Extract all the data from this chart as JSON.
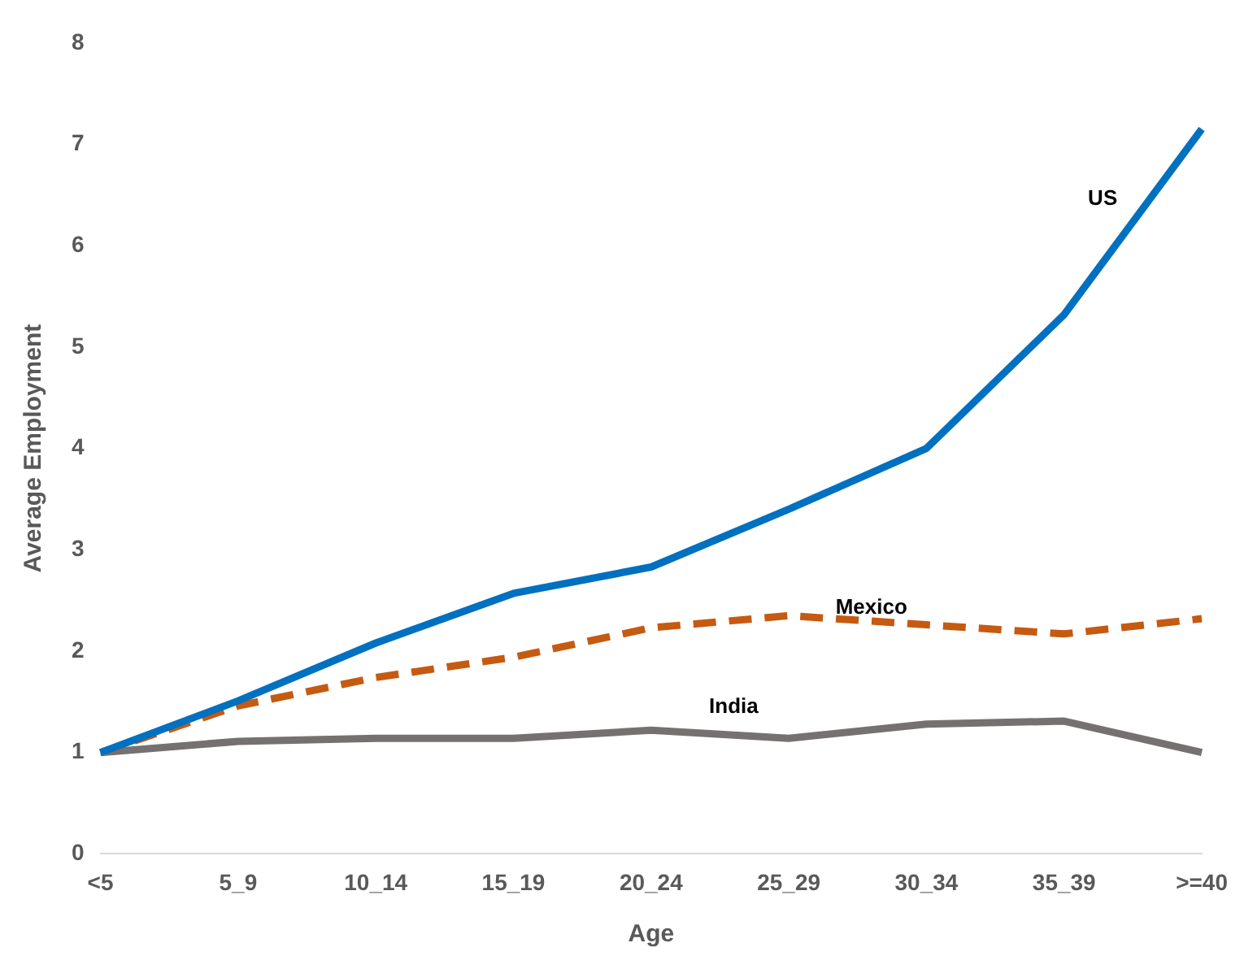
{
  "chart_data": {
    "type": "line",
    "xlabel": "Age",
    "ylabel": "Average Employment",
    "categories": [
      "<5",
      "5_9",
      "10_14",
      "15_19",
      "20_24",
      "25_29",
      "30_34",
      "35_39",
      ">=40"
    ],
    "ylim": [
      0,
      8
    ],
    "yticks": [
      0,
      1,
      2,
      3,
      4,
      5,
      6,
      7,
      8
    ],
    "grid": false,
    "legend": false,
    "marker": "none",
    "series": [
      {
        "name": "US",
        "color": "#0070c0",
        "line_style": "solid",
        "values": [
          1.0,
          1.51,
          2.08,
          2.57,
          2.83,
          3.4,
          4.0,
          5.32,
          7.15
        ]
      },
      {
        "name": "Mexico",
        "color": "#c55a11",
        "line_style": "dashed",
        "values": [
          1.0,
          1.46,
          1.74,
          1.94,
          2.23,
          2.35,
          2.26,
          2.17,
          2.32
        ]
      },
      {
        "name": "India",
        "color": "#767171",
        "line_style": "solid",
        "values": [
          1.0,
          1.11,
          1.14,
          1.14,
          1.22,
          1.14,
          1.28,
          1.31,
          1.0
        ]
      }
    ]
  }
}
